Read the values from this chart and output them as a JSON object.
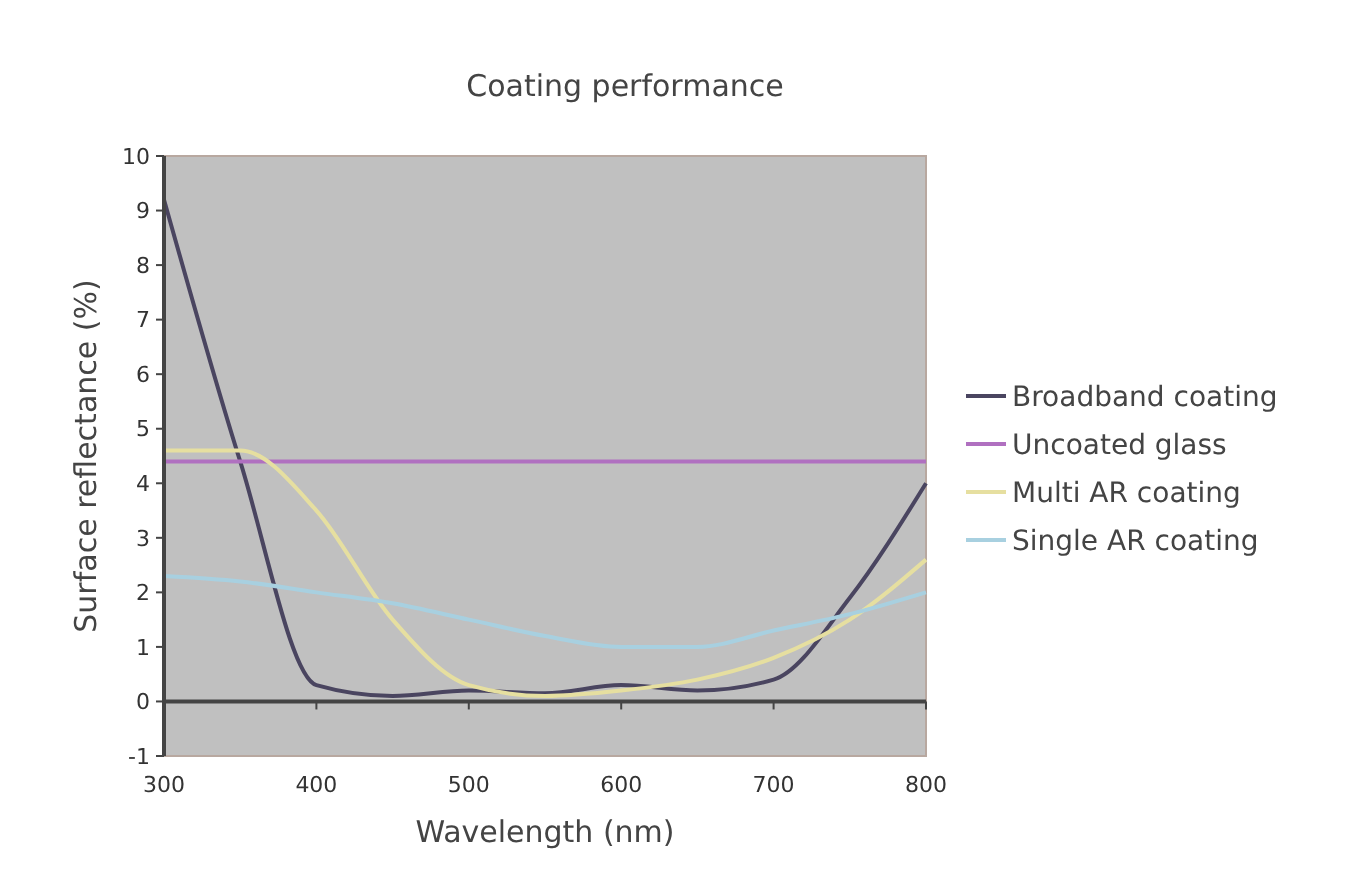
{
  "chart_data": {
    "type": "line",
    "title": "Coating performance",
    "xlabel": "Wavelength (nm)",
    "ylabel": "Surface reflectance (%)",
    "x": [
      300,
      350,
      400,
      450,
      500,
      550,
      600,
      650,
      700,
      750,
      800
    ],
    "xlim": [
      300,
      800
    ],
    "xticks": [
      300,
      400,
      500,
      600,
      700,
      800
    ],
    "ylim": [
      -1,
      10
    ],
    "yticks": [
      -1,
      0,
      1,
      2,
      3,
      4,
      5,
      6,
      7,
      8,
      9,
      10
    ],
    "legend": "right",
    "marker": "none",
    "line_style": "solid",
    "series": [
      {
        "name": "Broadband coating",
        "color": "#4a4560",
        "values": [
          9.2,
          4.4,
          0.3,
          0.1,
          0.2,
          0.15,
          0.3,
          0.2,
          0.4,
          1.9,
          4.0
        ]
      },
      {
        "name": "Uncoated glass",
        "color": "#b070c0",
        "values": [
          4.4,
          4.4,
          4.4,
          4.4,
          4.4,
          4.4,
          4.4,
          4.4,
          4.4,
          4.4,
          4.4
        ]
      },
      {
        "name": "Multi AR coating",
        "color": "#e6dfa0",
        "values": [
          4.6,
          4.6,
          3.5,
          1.5,
          0.3,
          0.1,
          0.2,
          0.4,
          0.8,
          1.5,
          2.6
        ]
      },
      {
        "name": "Single AR coating",
        "color": "#a8d0e0",
        "values": [
          2.3,
          2.2,
          2.0,
          1.8,
          1.5,
          1.2,
          1.0,
          1.0,
          1.3,
          1.6,
          2.0
        ]
      }
    ]
  }
}
